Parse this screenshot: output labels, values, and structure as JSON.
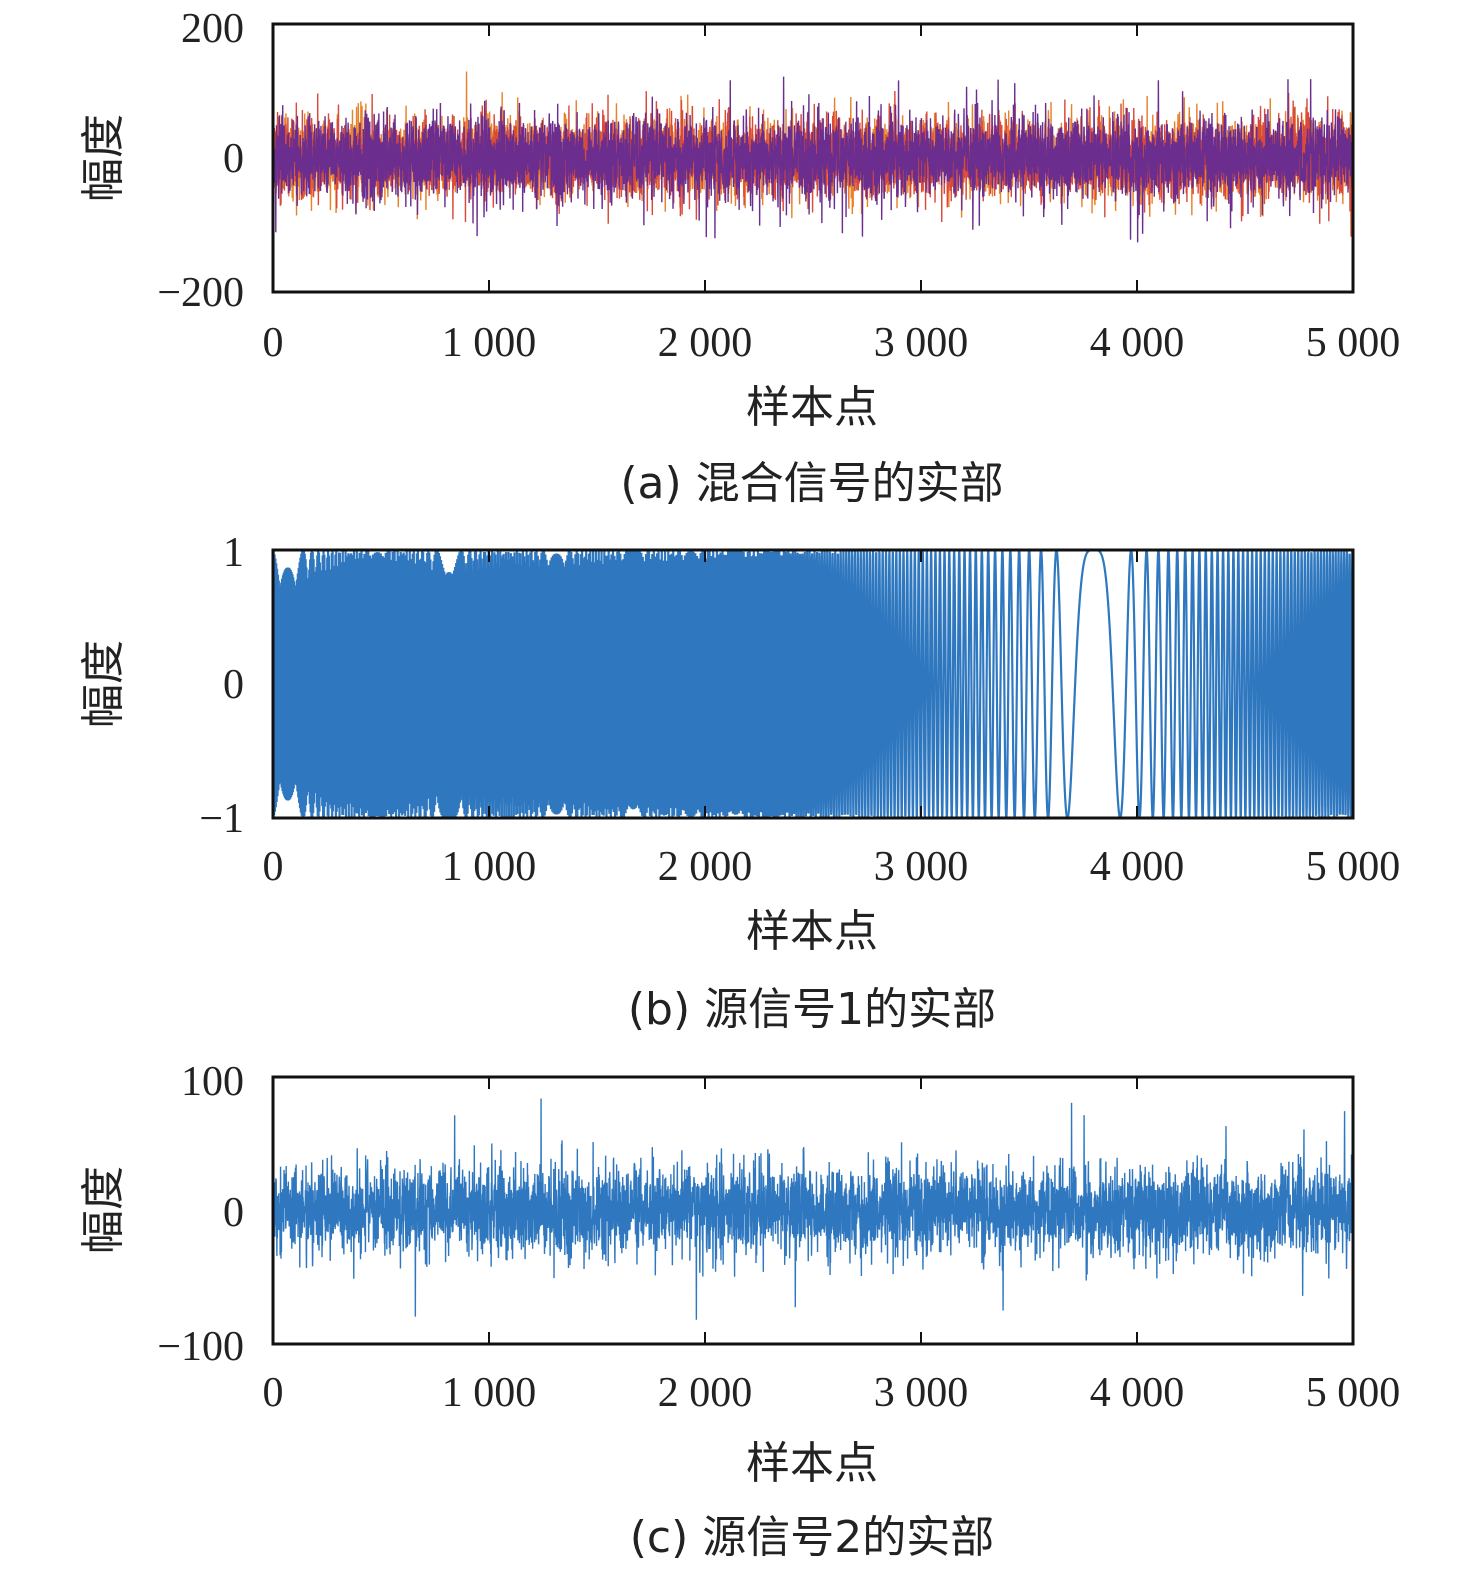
{
  "chart_data": [
    {
      "type": "line",
      "caption": "(a) 混合信号的实部",
      "xlabel": "样本点",
      "ylabel": "幅度",
      "xlim": [
        0,
        5000
      ],
      "ylim": [
        -200,
        200
      ],
      "x_ticks": [
        0,
        1000,
        2000,
        3000,
        4000,
        5000
      ],
      "x_tick_labels": [
        "0",
        "1 000",
        "2 000",
        "3 000",
        "4 000",
        "5 000"
      ],
      "y_tick_labels": [
        "200",
        "0",
        "−200"
      ],
      "y_ticks": [
        200,
        0,
        -200
      ],
      "series": [
        {
          "kind": "noise",
          "color": "#e8822a",
          "spread": 28,
          "peak": 95,
          "seed": 11
        },
        {
          "kind": "noise",
          "color": "#d84a3a",
          "spread": 28,
          "peak": 100,
          "seed": 23
        },
        {
          "kind": "noise",
          "color": "#6b2e8e",
          "spread": 30,
          "peak": 130,
          "seed": 37
        }
      ]
    },
    {
      "type": "line",
      "caption": "(b) 源信号1的实部",
      "xlabel": "样本点",
      "ylabel": "幅度",
      "xlim": [
        0,
        5000
      ],
      "ylim": [
        -1,
        1
      ],
      "x_ticks": [
        0,
        1000,
        2000,
        3000,
        4000,
        5000
      ],
      "x_tick_labels": [
        "0",
        "1 000",
        "2 000",
        "3 000",
        "4 000",
        "5 000"
      ],
      "y_tick_labels": [
        "1",
        "0",
        "−1"
      ],
      "y_ticks": [
        1,
        0,
        -1
      ],
      "series": [
        {
          "kind": "chirp",
          "color": "#2f78c0",
          "center": 3800
        }
      ]
    },
    {
      "type": "line",
      "caption": "(c) 源信号2的实部",
      "xlabel": "样本点",
      "ylabel": "幅度",
      "xlim": [
        0,
        5000
      ],
      "ylim": [
        -100,
        100
      ],
      "x_ticks": [
        0,
        1000,
        2000,
        3000,
        4000,
        5000
      ],
      "x_tick_labels": [
        "0",
        "1 000",
        "2 000",
        "3 000",
        "4 000",
        "5 000"
      ],
      "y_tick_labels": [
        "100",
        "0",
        "−100"
      ],
      "y_ticks": [
        100,
        0,
        -100
      ],
      "series": [
        {
          "kind": "noise",
          "color": "#2f78c0",
          "spread": 17,
          "peak": 85,
          "seed": 53
        }
      ]
    }
  ]
}
